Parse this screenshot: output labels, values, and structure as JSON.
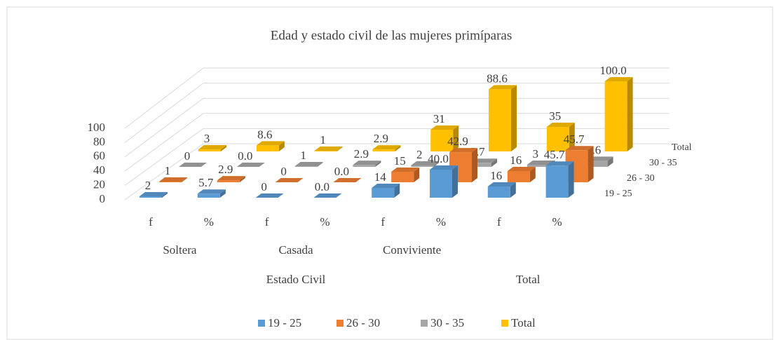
{
  "chart_data": {
    "type": "bar3d",
    "title": "Edad y estado civil de las mujeres primíparas",
    "category_groups": [
      {
        "name": "Estado Civil",
        "subgroups": [
          {
            "name": "Soltera",
            "categories": [
              "f",
              "%"
            ]
          },
          {
            "name": "Casada",
            "categories": [
              "f",
              "%"
            ]
          },
          {
            "name": "Conviviente",
            "categories": [
              "f",
              "%"
            ]
          }
        ]
      },
      {
        "name": "Total",
        "subgroups": [
          {
            "name": null,
            "categories": [
              "f",
              "%"
            ]
          }
        ]
      }
    ],
    "series": [
      {
        "name": "19 - 25",
        "color": "#5b9bd5",
        "values": [
          2,
          5.7,
          0,
          0.0,
          14,
          40.0,
          16,
          45.7
        ],
        "value_labels": [
          "2",
          "5.7",
          "0",
          "0.0",
          "14",
          "40.0",
          "16",
          "45.7"
        ]
      },
      {
        "name": "26 - 30",
        "color": "#ed7d31",
        "values": [
          1,
          2.9,
          0,
          0.0,
          15,
          42.9,
          16,
          45.7
        ],
        "value_labels": [
          "1",
          "2.9",
          "0",
          "0.0",
          "15",
          "42.9",
          "16",
          "45.7"
        ]
      },
      {
        "name": "30 - 35",
        "color": "#a5a5a5",
        "values": [
          0,
          0.0,
          1,
          2.9,
          2,
          5.7,
          3,
          8.6
        ],
        "value_labels": [
          "0",
          "0.0",
          "1",
          "2.9",
          "2",
          "5.7",
          "3",
          "8.6"
        ]
      },
      {
        "name": "Total",
        "color": "#ffc000",
        "values": [
          3,
          8.6,
          1,
          2.9,
          31,
          88.6,
          35,
          100.0
        ],
        "value_labels": [
          "3",
          "8.6",
          "1",
          "2.9",
          "31",
          "88.6",
          "35",
          "100.0"
        ]
      }
    ],
    "ylim": [
      0,
      100
    ],
    "yticks": [
      0,
      20,
      40,
      60,
      80,
      100
    ],
    "grid": true,
    "legend": "bottom"
  }
}
